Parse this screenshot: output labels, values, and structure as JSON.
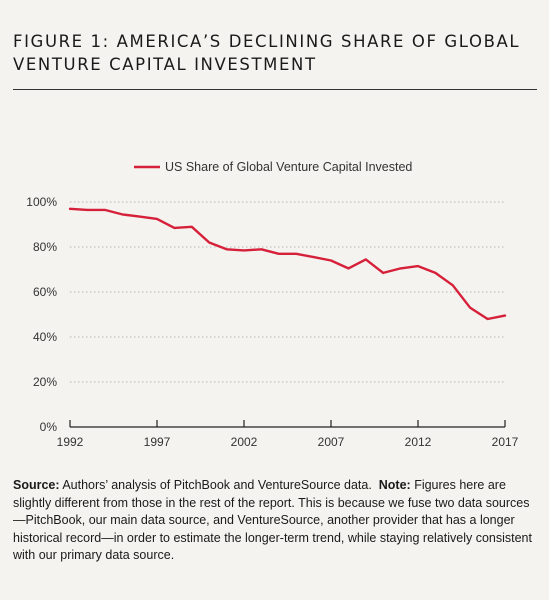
{
  "figure": {
    "title": "FIGURE 1: AMERICA’S DECLINING SHARE OF GLOBAL VENTURE CAPITAL INVESTMENT"
  },
  "chart_data": {
    "type": "line",
    "title": "",
    "xlabel": "",
    "ylabel": "",
    "legend_position": "top-center",
    "grid": "horizontal dotted",
    "xlim": [
      1992,
      2017
    ],
    "ylim": [
      0,
      100
    ],
    "x_ticks": [
      "1992",
      "1997",
      "2002",
      "2007",
      "2012",
      "2017"
    ],
    "y_ticks": [
      "0%",
      "20%",
      "40%",
      "60%",
      "80%",
      "100%"
    ],
    "series": [
      {
        "name": "US Share of Global Venture Capital Invested",
        "color": "#d6203a",
        "x": [
          1992,
          1993,
          1994,
          1995,
          1996,
          1997,
          1998,
          1999,
          2000,
          2001,
          2002,
          2003,
          2004,
          2005,
          2006,
          2007,
          2008,
          2009,
          2010,
          2011,
          2012,
          2013,
          2014,
          2015,
          2016,
          2017
        ],
        "y": [
          97,
          96.5,
          96.5,
          94.5,
          93.5,
          92.5,
          88.5,
          89,
          82,
          79,
          78.5,
          79,
          77,
          77,
          75.5,
          74,
          70.5,
          74.5,
          68.5,
          70.5,
          71.5,
          68.5,
          63,
          53,
          48,
          49.5
        ]
      }
    ]
  },
  "source": {
    "label": "Source:",
    "text": "Authors’ analysis of PitchBook and VentureSource data.",
    "note_label": "Note:",
    "note_text": "Figures here are slightly different from those in the rest of the report. This is because we fuse two data sources—PitchBook, our main data source, and VentureSource, another provider that has a longer historical record—in order to estimate the longer-term trend, while staying relatively consistent with our primary data source."
  }
}
